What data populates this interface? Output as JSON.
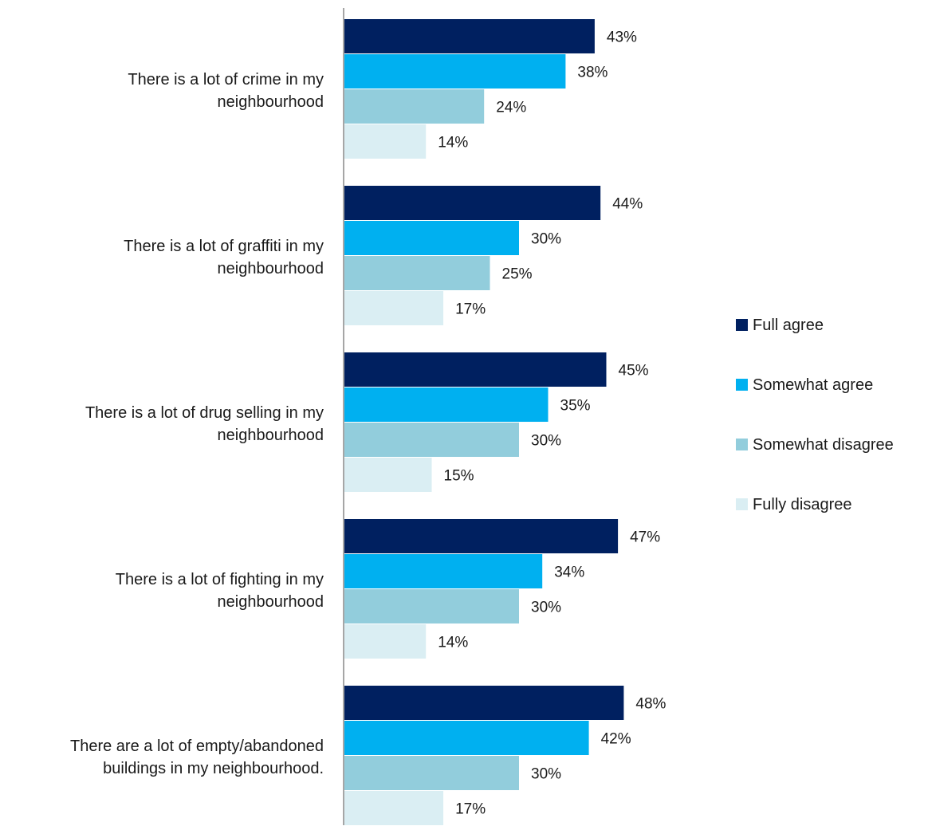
{
  "chart_data": {
    "type": "bar",
    "orientation": "horizontal",
    "categories": [
      [
        "There is a lot of crime in my",
        "neighbourhood"
      ],
      [
        "There is a lot of graffiti in my",
        "neighbourhood"
      ],
      [
        "There is a lot of drug selling in my",
        "neighbourhood"
      ],
      [
        "There is a lot of fighting in my",
        "neighbourhood"
      ],
      [
        "There are a lot of empty/abandoned",
        "buildings in my neighbourhood."
      ]
    ],
    "series": [
      {
        "name": "Full agree",
        "color": "#002060",
        "values": [
          43,
          44,
          45,
          47,
          48
        ]
      },
      {
        "name": "Somewhat agree",
        "color": "#00b0f0",
        "values": [
          38,
          30,
          35,
          34,
          42
        ]
      },
      {
        "name": "Somewhat disagree",
        "color": "#92cddc",
        "values": [
          24,
          25,
          30,
          30,
          30
        ]
      },
      {
        "name": "Fully disagree",
        "color": "#daeef3",
        "values": [
          14,
          17,
          15,
          14,
          17
        ]
      }
    ],
    "value_suffix": "%",
    "xlim": [
      0,
      100
    ],
    "grid": false,
    "legend_position": "right",
    "title": "",
    "xlabel": "",
    "ylabel": ""
  }
}
